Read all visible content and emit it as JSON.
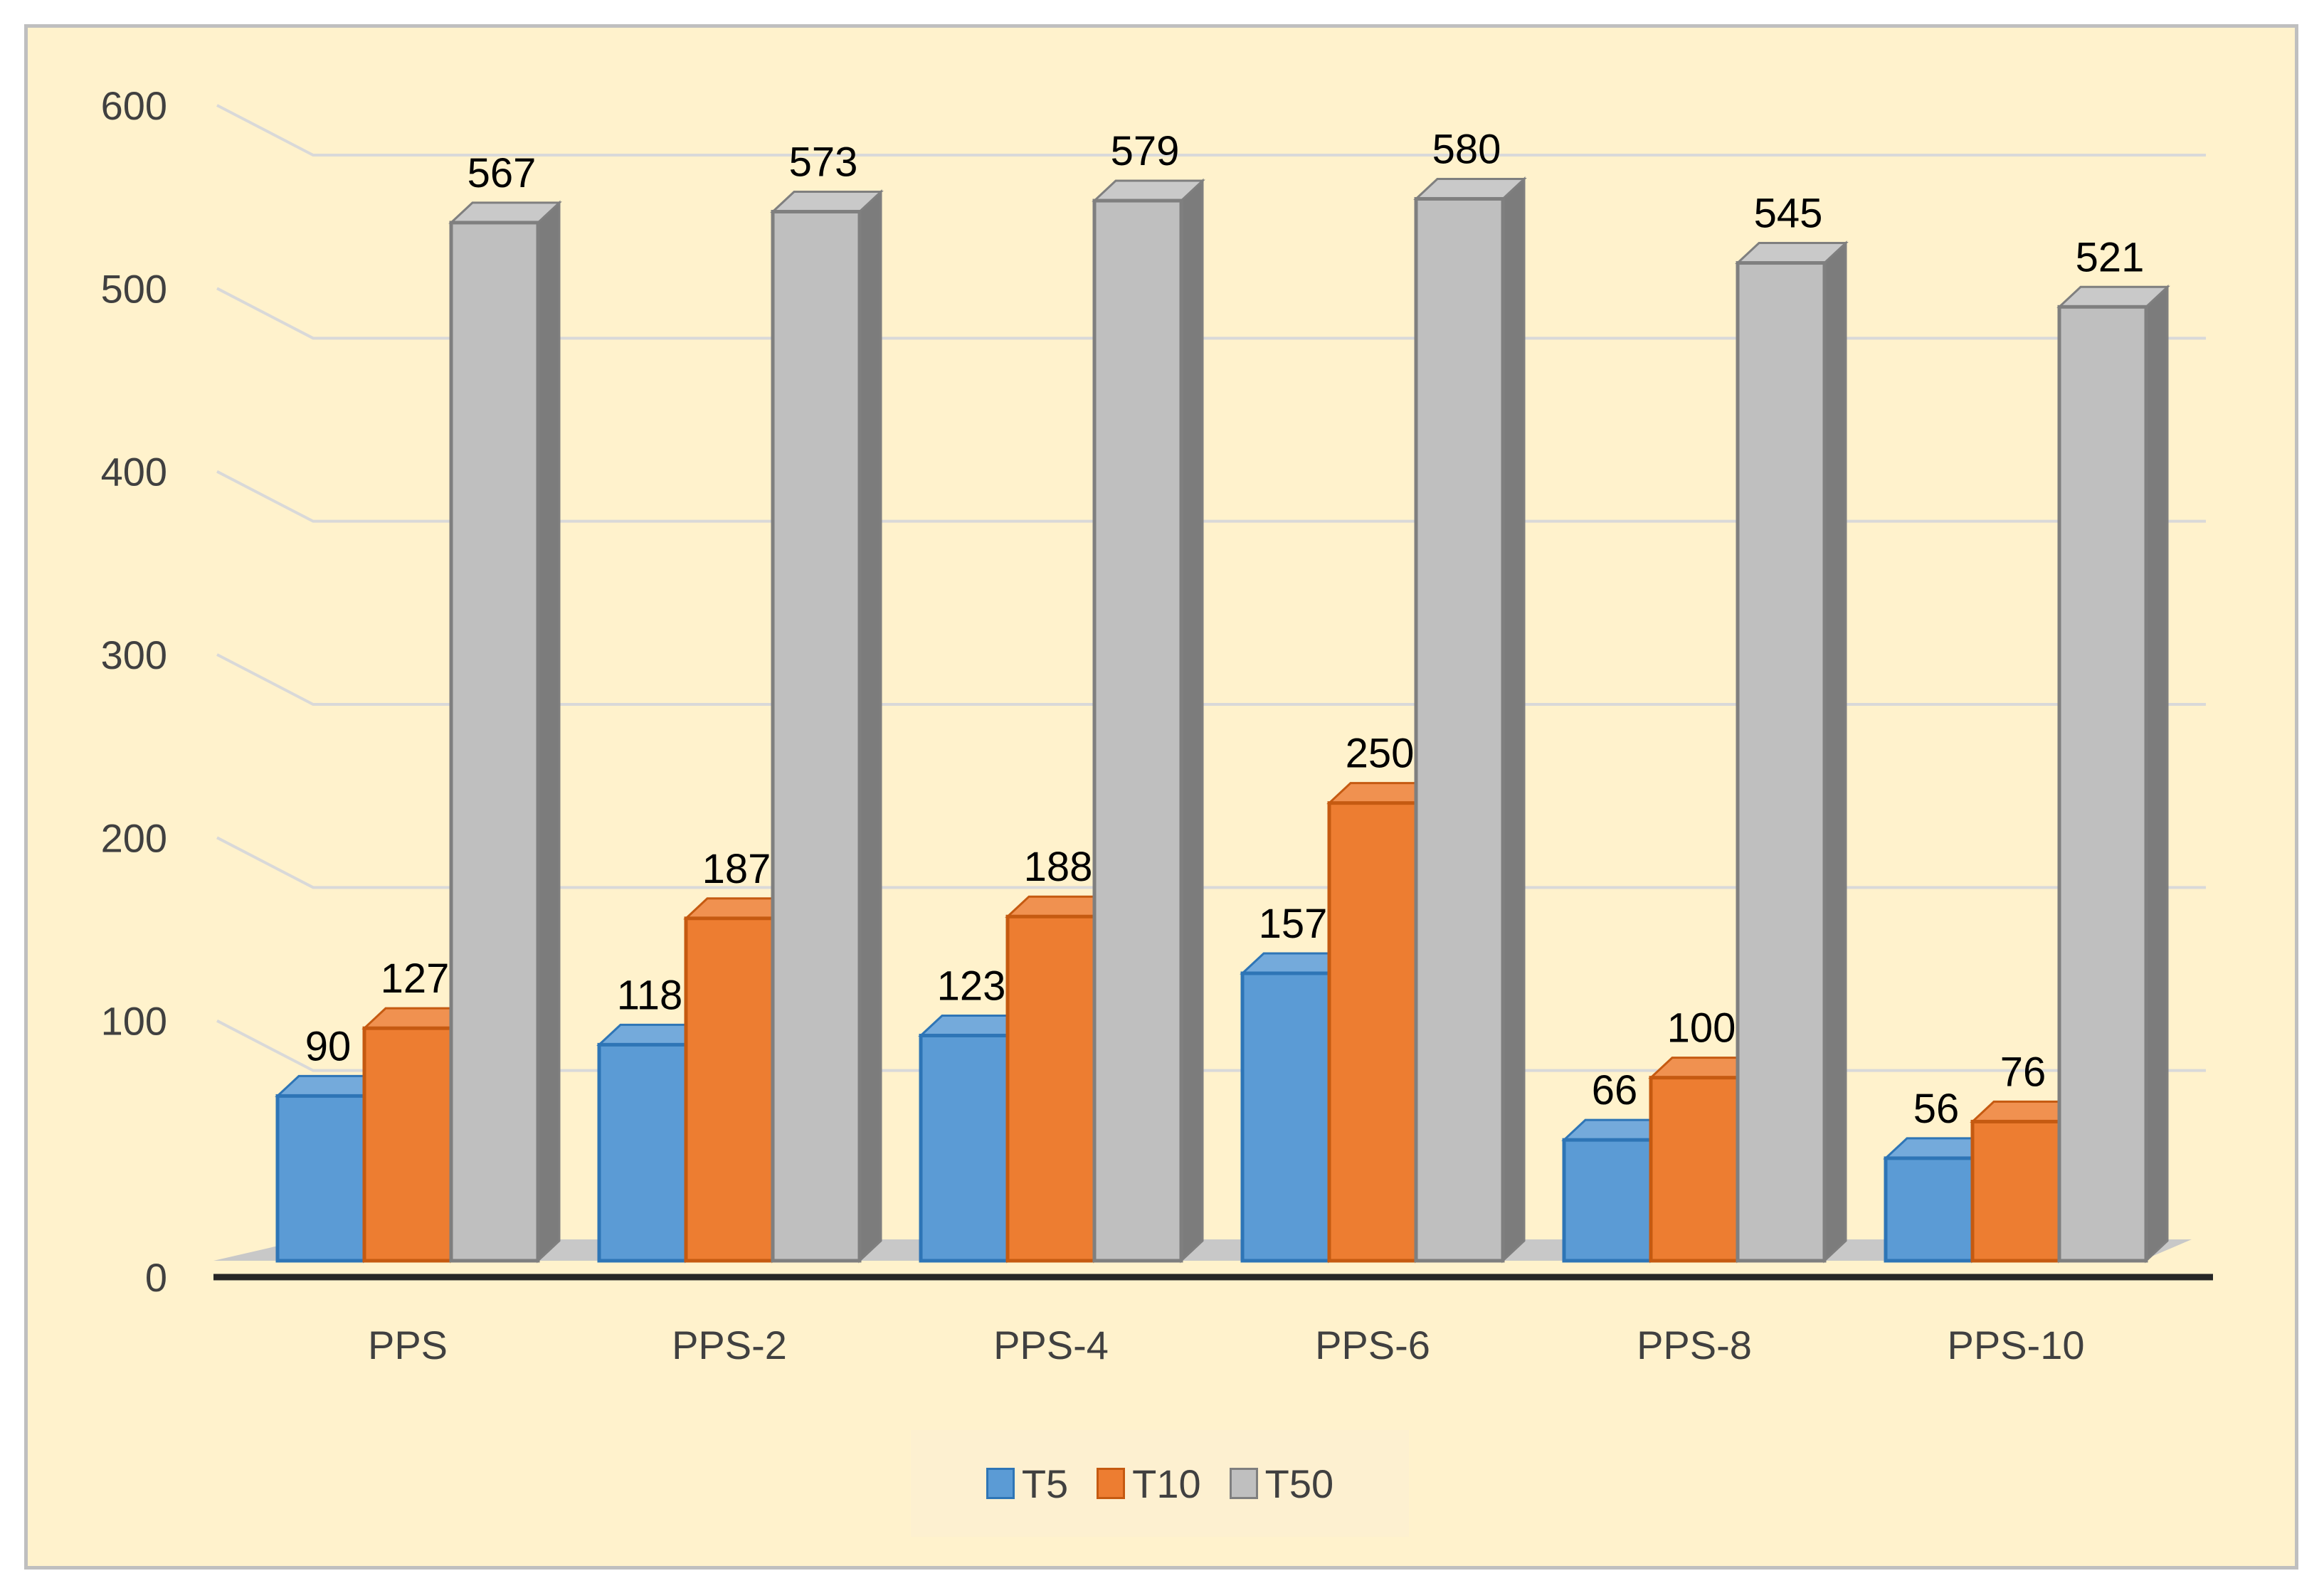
{
  "chart_data": {
    "type": "bar",
    "categories": [
      "PPS",
      "PPS-2",
      "PPS-4",
      "PPS-6",
      "PPS-8",
      "PPS-10"
    ],
    "series": [
      {
        "name": "T5",
        "values": [
          90,
          118,
          123,
          157,
          66,
          56
        ],
        "color": "#5b9bd5",
        "edge": "#2e75b6"
      },
      {
        "name": "T10",
        "values": [
          127,
          187,
          188,
          250,
          100,
          76
        ],
        "color": "#ed7d31",
        "edge": "#c55a11"
      },
      {
        "name": "T50",
        "values": [
          567,
          573,
          579,
          580,
          545,
          521
        ],
        "color": "#bfbfbf",
        "edge": "#7f7f7f"
      }
    ],
    "ylim": [
      0,
      600
    ],
    "yticks": [
      "0",
      "100",
      "200",
      "300",
      "400",
      "500",
      "600"
    ],
    "title": "",
    "xlabel": "",
    "ylabel": "",
    "grid": true,
    "legend_position": "bottom",
    "style": "3d-clustered-column"
  }
}
